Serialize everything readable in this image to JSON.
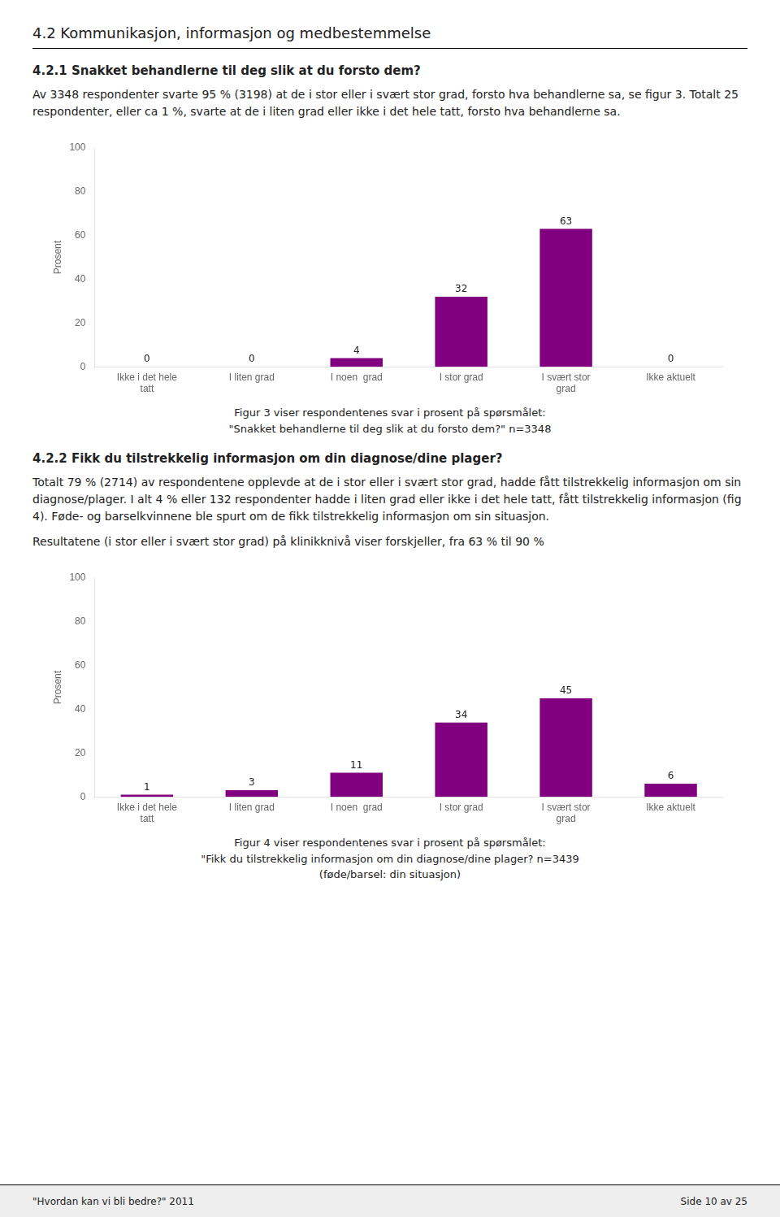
{
  "page_title": "4.2   Kommunikasjon, informasjon og medbestemmelse",
  "chart_data": [
    {
      "type": "bar",
      "heading": "4.2.1   Snakket behandlerne til deg slik at du forsto dem?",
      "paragraphs": [
        "Av 3348 respondenter svarte 95 % (3198) at de i stor eller i svært stor grad, forsto hva behandlerne sa, se figur 3. Totalt 25 respondenter, eller ca 1 %, svarte at de i liten grad eller ikke i det hele tatt, forsto hva behandlerne sa."
      ],
      "categories": [
        "Ikke i det hele\ntatt",
        "I liten grad",
        "I noen  grad",
        "I stor grad",
        "I svært stor\ngrad",
        "Ikke aktuelt"
      ],
      "values": [
        0,
        0,
        4,
        32,
        63,
        0
      ],
      "color": "#800080",
      "y_label": "Prosent",
      "ylim": [
        0,
        100
      ],
      "yticks": [
        0,
        20,
        40,
        60,
        80,
        100
      ],
      "grid": false,
      "data_labels": true,
      "caption": [
        "Figur 3 viser respondentenes svar i prosent på spørsmålet:",
        "\"Snakket behandlerne til deg slik at du forsto dem?\" n=3348"
      ]
    },
    {
      "type": "bar",
      "heading": "4.2.2   Fikk du tilstrekkelig informasjon om din diagnose/dine plager?",
      "paragraphs": [
        "Totalt 79 % (2714) av respondentene opplevde at de i stor eller i svært stor grad, hadde fått tilstrekkelig informasjon om sin diagnose/plager. I alt 4 % eller 132 respondenter hadde i liten grad eller ikke i det hele tatt, fått tilstrekkelig informasjon (fig 4). Føde- og barselkvinnene ble spurt om de fikk tilstrekkelig informasjon om sin situasjon.",
        "Resultatene (i stor eller i svært stor grad) på klinikknivå viser forskjeller, fra 63 % til 90 %"
      ],
      "categories": [
        "Ikke i det hele\ntatt",
        "I liten grad",
        "I noen  grad",
        "I stor grad",
        "I svært stor\ngrad",
        "Ikke aktuelt"
      ],
      "values": [
        1,
        3,
        11,
        34,
        45,
        6
      ],
      "color": "#800080",
      "y_label": "Prosent",
      "ylim": [
        0,
        100
      ],
      "yticks": [
        0,
        20,
        40,
        60,
        80,
        100
      ],
      "grid": false,
      "data_labels": true,
      "caption": [
        "Figur 4 viser respondentenes svar i prosent på spørsmålet:",
        "\"Fikk du tilstrekkelig informasjon om din diagnose/dine plager? n=3439",
        "(føde/barsel: din situasjon)"
      ]
    }
  ],
  "footer_left": "\"Hvordan kan vi bli bedre?\" 2011",
  "footer_right": "Side 10 av 25"
}
